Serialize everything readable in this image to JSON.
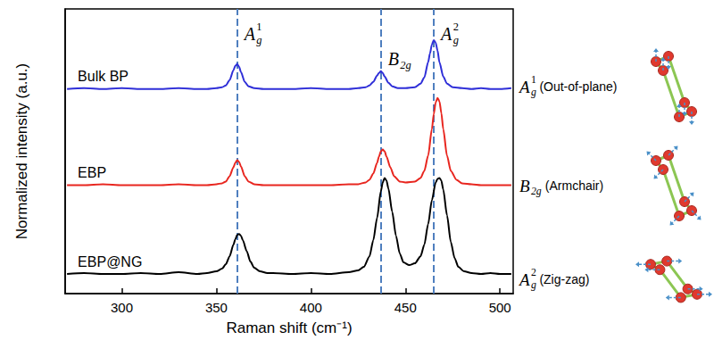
{
  "chart_data": {
    "type": "line",
    "x_label": "Raman shift (cm⁻¹)",
    "y_label": "Normalized intensity (a.u.)",
    "xlim": [
      270,
      507
    ],
    "xticks": [
      300,
      350,
      400,
      450,
      500
    ],
    "ylim": [
      0,
      3.2
    ],
    "grid": false,
    "tick_labels": "x",
    "series": [
      {
        "name": "Bulk BP",
        "color": "#2f2fd8",
        "x": [
          271,
          280,
          290,
          300,
          310,
          320,
          330,
          340,
          345,
          350,
          353,
          355,
          357,
          359,
          360,
          361,
          362,
          363,
          365,
          367,
          370,
          375,
          380,
          390,
          400,
          410,
          420,
          425,
          429,
          431,
          433,
          435,
          436,
          437,
          438,
          439,
          441,
          443,
          446,
          450,
          455,
          458,
          460,
          462,
          463,
          464,
          465,
          466,
          467,
          468,
          470,
          472,
          475,
          480,
          485,
          490,
          495,
          500,
          506
        ],
        "values": [
          2.3,
          2.31,
          2.3,
          2.31,
          2.3,
          2.3,
          2.31,
          2.3,
          2.3,
          2.31,
          2.32,
          2.34,
          2.4,
          2.51,
          2.56,
          2.58,
          2.55,
          2.49,
          2.38,
          2.33,
          2.31,
          2.3,
          2.3,
          2.3,
          2.31,
          2.3,
          2.3,
          2.31,
          2.32,
          2.34,
          2.38,
          2.45,
          2.48,
          2.5,
          2.48,
          2.44,
          2.37,
          2.33,
          2.31,
          2.31,
          2.32,
          2.36,
          2.43,
          2.6,
          2.7,
          2.8,
          2.85,
          2.82,
          2.73,
          2.6,
          2.44,
          2.36,
          2.32,
          2.31,
          2.3,
          2.31,
          2.3,
          2.3,
          2.31
        ]
      },
      {
        "name": "EBP",
        "color": "#e8261f",
        "x": [
          271,
          280,
          290,
          300,
          310,
          320,
          330,
          340,
          345,
          350,
          353,
          355,
          357,
          359,
          360,
          361,
          362,
          363,
          365,
          367,
          370,
          375,
          380,
          390,
          400,
          410,
          420,
          425,
          429,
          431,
          433,
          435,
          436,
          437,
          438,
          439,
          440,
          442,
          444,
          447,
          450,
          455,
          458,
          460,
          462,
          464,
          465,
          466,
          467,
          468,
          469,
          470,
          472,
          474,
          477,
          480,
          485,
          490,
          495,
          500,
          506
        ],
        "values": [
          1.22,
          1.22,
          1.23,
          1.22,
          1.22,
          1.22,
          1.23,
          1.22,
          1.22,
          1.23,
          1.24,
          1.26,
          1.32,
          1.42,
          1.47,
          1.5,
          1.48,
          1.43,
          1.32,
          1.26,
          1.23,
          1.22,
          1.22,
          1.22,
          1.22,
          1.22,
          1.23,
          1.23,
          1.25,
          1.28,
          1.35,
          1.47,
          1.54,
          1.6,
          1.62,
          1.6,
          1.54,
          1.42,
          1.32,
          1.26,
          1.25,
          1.26,
          1.3,
          1.38,
          1.55,
          1.85,
          2.02,
          2.15,
          2.2,
          2.16,
          2.03,
          1.85,
          1.55,
          1.38,
          1.28,
          1.24,
          1.23,
          1.22,
          1.22,
          1.22,
          1.22
        ]
      },
      {
        "name": "EBP@NG",
        "color": "#000000",
        "x": [
          271,
          280,
          290,
          300,
          310,
          320,
          330,
          340,
          345,
          350,
          353,
          355,
          357,
          359,
          360,
          361,
          362,
          363,
          364,
          366,
          368,
          370,
          373,
          377,
          380,
          390,
          400,
          410,
          420,
          425,
          428,
          431,
          433,
          435,
          437,
          438,
          439,
          440,
          441,
          443,
          445,
          447,
          449,
          452,
          455,
          458,
          460,
          462,
          464,
          466,
          467,
          468,
          469,
          470,
          472,
          474,
          476,
          478,
          481,
          485,
          490,
          495,
          500,
          506
        ],
        "values": [
          0.22,
          0.23,
          0.22,
          0.22,
          0.23,
          0.22,
          0.24,
          0.22,
          0.23,
          0.25,
          0.28,
          0.33,
          0.42,
          0.55,
          0.61,
          0.66,
          0.67,
          0.65,
          0.6,
          0.48,
          0.36,
          0.29,
          0.25,
          0.23,
          0.23,
          0.22,
          0.23,
          0.22,
          0.24,
          0.26,
          0.3,
          0.42,
          0.6,
          0.85,
          1.15,
          1.25,
          1.3,
          1.27,
          1.18,
          0.92,
          0.65,
          0.45,
          0.35,
          0.32,
          0.34,
          0.42,
          0.55,
          0.78,
          1.05,
          1.25,
          1.29,
          1.3,
          1.27,
          1.17,
          0.88,
          0.58,
          0.4,
          0.3,
          0.25,
          0.23,
          0.22,
          0.23,
          0.22,
          0.22
        ]
      }
    ],
    "peaks": [
      {
        "x": 361,
        "symbol": "A",
        "sub": "g",
        "sup": "1",
        "description": "(Out-of-plane)"
      },
      {
        "x": 437,
        "symbol": "B",
        "sub": "2g",
        "description": "(Armchair)"
      },
      {
        "x": 465,
        "symbol": "A",
        "sub": "g",
        "sup": "2",
        "description": "(Zig-zag)"
      }
    ]
  }
}
